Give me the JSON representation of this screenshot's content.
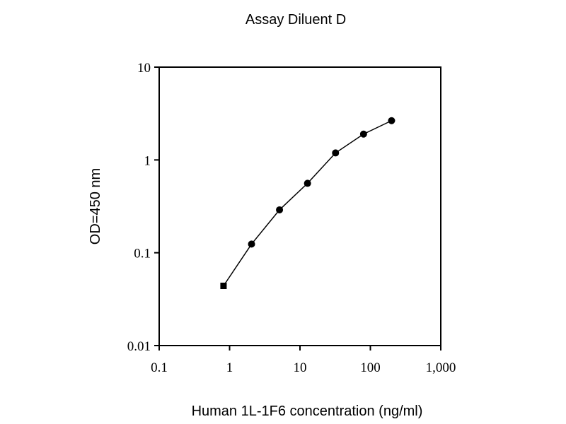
{
  "chart_data": {
    "type": "line",
    "title": "Assay Diluent D",
    "xlabel": "Human 1L-1F6 concentration (ng/ml)",
    "ylabel": "OD=450 nm",
    "xscale": "log",
    "yscale": "log",
    "xlim": [
      0.1,
      1000
    ],
    "ylim": [
      0.01,
      10
    ],
    "xticks": [
      0.1,
      1,
      10,
      100,
      1000
    ],
    "xtick_labels": [
      "0.1",
      "1",
      "10",
      "100",
      "1,000"
    ],
    "yticks": [
      0.01,
      0.1,
      1,
      10
    ],
    "ytick_labels": [
      "0.01",
      "0.1",
      "1",
      "10"
    ],
    "grid": false,
    "legend": "none",
    "series": [
      {
        "x": [
          0.82,
          2.05,
          5.12,
          12.8,
          32,
          80,
          200
        ],
        "y": [
          0.044,
          0.124,
          0.29,
          0.56,
          1.19,
          1.9,
          2.65
        ],
        "color": "#000000",
        "markers": [
          "square",
          "circle",
          "circle",
          "circle",
          "circle",
          "circle",
          "circle"
        ]
      }
    ]
  }
}
